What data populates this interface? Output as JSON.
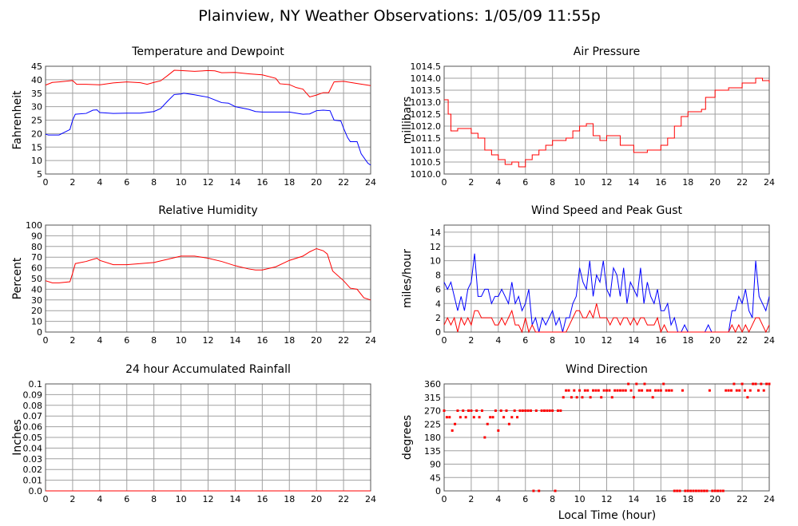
{
  "title": "Plainview, NY Weather Observations: 1/05/09 11:55p",
  "xlabel": "Local Time (hour)",
  "chart_data": [
    {
      "id": "temperature",
      "type": "line",
      "title": "Temperature and Dewpoint",
      "ylabel": "Fahrenheit",
      "xlim": [
        0,
        24
      ],
      "xticks": [
        0,
        2,
        4,
        6,
        8,
        10,
        12,
        14,
        16,
        18,
        20,
        22,
        24
      ],
      "ylim": [
        5,
        45
      ],
      "yticks": [
        5,
        10,
        15,
        20,
        25,
        30,
        35,
        40,
        45
      ],
      "decimals": 0,
      "grid": true,
      "series": [
        {
          "name": "Temperature",
          "color": "#ff0000",
          "x": [
            0,
            0.5,
            1,
            2,
            2.3,
            3,
            4,
            5,
            6,
            7,
            7.5,
            8,
            8.5,
            9,
            9.5,
            10,
            11,
            12,
            12.5,
            13,
            14,
            15,
            16,
            17,
            17.3,
            18,
            18.5,
            19,
            19.5,
            20,
            20.5,
            20.9,
            21.3,
            22,
            23,
            24
          ],
          "y": [
            38,
            39,
            39.2,
            39.7,
            38.3,
            38.3,
            38.1,
            38.8,
            39.2,
            38.9,
            38.3,
            39,
            39.6,
            41.5,
            43.5,
            43.4,
            43.1,
            43.4,
            43.3,
            42.6,
            42.7,
            42.2,
            41.8,
            40.5,
            38.5,
            38.2,
            37.1,
            36.5,
            33.6,
            34.3,
            35.2,
            35.2,
            39.2,
            39.4,
            38.6,
            37.8
          ]
        },
        {
          "name": "Dewpoint",
          "color": "#0000ff",
          "x": [
            0,
            0.2,
            1,
            1.8,
            2,
            2.2,
            3,
            3.5,
            3.8,
            4,
            5,
            6,
            7,
            8,
            8.5,
            9,
            9.5,
            10,
            10.2,
            11,
            12,
            12.5,
            13,
            13.5,
            14,
            15,
            15.5,
            16,
            17,
            18,
            19,
            19.5,
            20,
            20.5,
            21,
            21.3,
            21.8,
            22,
            22.3,
            22.5,
            23,
            23.3,
            23.8,
            24
          ],
          "y": [
            19.8,
            19.5,
            19.5,
            21.5,
            25,
            27.2,
            27.5,
            28.7,
            28.8,
            27.8,
            27.5,
            27.6,
            27.6,
            28.2,
            29.3,
            32,
            34.5,
            34.7,
            35,
            34.4,
            33.5,
            32.5,
            31.5,
            31.3,
            30,
            29,
            28.2,
            28,
            28,
            28,
            27.2,
            27.3,
            28.5,
            28.7,
            28.5,
            25,
            24.7,
            22,
            18.5,
            17,
            17,
            12.5,
            9,
            8.3
          ]
        }
      ]
    },
    {
      "id": "pressure",
      "type": "line",
      "title": "Air Pressure",
      "ylabel": "millibars",
      "xlim": [
        0,
        24
      ],
      "xticks": [
        0,
        2,
        4,
        6,
        8,
        10,
        12,
        14,
        16,
        18,
        20,
        22,
        24
      ],
      "ylim": [
        1010.0,
        1014.5
      ],
      "yticks": [
        1010.0,
        1010.5,
        1011.0,
        1011.5,
        1012.0,
        1012.5,
        1013.0,
        1013.5,
        1014.0,
        1014.5
      ],
      "decimals": 1,
      "grid": true,
      "step": true,
      "series": [
        {
          "name": "Pressure",
          "color": "#ff0000",
          "x": [
            0,
            0.3,
            0.5,
            1,
            2,
            2.5,
            3,
            3.5,
            4,
            4.5,
            5,
            5.5,
            6,
            6.5,
            7,
            7.5,
            8,
            9,
            9.5,
            10,
            10.5,
            11,
            11.5,
            12,
            13,
            14,
            15,
            16,
            16.5,
            17,
            17.5,
            18,
            19,
            19.3,
            20,
            21,
            22,
            22.5,
            23,
            23.5,
            24
          ],
          "y": [
            1013.1,
            1012.5,
            1011.8,
            1011.9,
            1011.7,
            1011.5,
            1011.0,
            1010.8,
            1010.6,
            1010.4,
            1010.5,
            1010.3,
            1010.6,
            1010.8,
            1011.0,
            1011.2,
            1011.4,
            1011.5,
            1011.8,
            1012.0,
            1012.1,
            1011.6,
            1011.4,
            1011.6,
            1011.2,
            1010.9,
            1011.0,
            1011.2,
            1011.5,
            1012.0,
            1012.4,
            1012.6,
            1012.7,
            1013.2,
            1013.5,
            1013.6,
            1013.8,
            1013.8,
            1014.0,
            1013.9,
            1013.8
          ]
        }
      ]
    },
    {
      "id": "humidity",
      "type": "line",
      "title": "Relative Humidity",
      "ylabel": "Percent",
      "xlim": [
        0,
        24
      ],
      "xticks": [
        0,
        2,
        4,
        6,
        8,
        10,
        12,
        14,
        16,
        18,
        20,
        22,
        24
      ],
      "ylim": [
        0,
        100
      ],
      "yticks": [
        0,
        10,
        20,
        30,
        40,
        50,
        60,
        70,
        80,
        90,
        100
      ],
      "decimals": 0,
      "grid": true,
      "series": [
        {
          "name": "Relative Humidity",
          "color": "#ff0000",
          "x": [
            0,
            0.5,
            1,
            1.8,
            2,
            2.2,
            3,
            3.5,
            3.8,
            4,
            5,
            6,
            7,
            8,
            9,
            10,
            11,
            12,
            13,
            14,
            15,
            15.5,
            16,
            17,
            18,
            19,
            19.5,
            20,
            20.5,
            20.8,
            21.2,
            22,
            22.5,
            23,
            23.5,
            24
          ],
          "y": [
            48,
            46,
            46,
            47,
            55,
            64,
            66,
            68,
            69,
            67,
            63,
            63,
            64,
            65,
            68,
            71,
            71,
            69,
            66,
            62,
            59,
            58,
            58,
            61,
            67,
            71,
            75,
            78,
            76,
            73,
            57,
            48,
            41,
            40,
            32,
            30
          ]
        }
      ]
    },
    {
      "id": "wind",
      "type": "line",
      "title": "Wind Speed and Peak Gust",
      "ylabel": "miles/hour",
      "xlim": [
        0,
        24
      ],
      "xticks": [
        0,
        2,
        4,
        6,
        8,
        10,
        12,
        14,
        16,
        18,
        20,
        22,
        24
      ],
      "ylim": [
        0,
        15
      ],
      "yticks": [
        0,
        2,
        4,
        6,
        8,
        10,
        12,
        14
      ],
      "decimals": 0,
      "grid": true,
      "x_step_hours": 0.25,
      "series": [
        {
          "name": "Peak Gust",
          "color": "#0000ff",
          "y": [
            7,
            6,
            7,
            5,
            3,
            5,
            3,
            6,
            7,
            11,
            5,
            5,
            6,
            6,
            4,
            5,
            5,
            6,
            5,
            4,
            7,
            4,
            5,
            3,
            4,
            6,
            1,
            2,
            0,
            2,
            1,
            2,
            3,
            1,
            2,
            0,
            2,
            2,
            4,
            5,
            9,
            7,
            6,
            10,
            5,
            8,
            7,
            10,
            6,
            5,
            9,
            8,
            5,
            9,
            4,
            7,
            6,
            5,
            9,
            4,
            7,
            5,
            4,
            6,
            3,
            3,
            4,
            1,
            2,
            0,
            0,
            1,
            0,
            0,
            0,
            0,
            0,
            0,
            1,
            0,
            0,
            0,
            0,
            0,
            0,
            3,
            3,
            5,
            4,
            6,
            3,
            2,
            10,
            5,
            4,
            3,
            5
          ]
        },
        {
          "name": "Wind Speed",
          "color": "#ff0000",
          "y": [
            1,
            2,
            1,
            2,
            0,
            2,
            1,
            2,
            1,
            3,
            3,
            2,
            2,
            2,
            2,
            1,
            1,
            2,
            1,
            2,
            3,
            1,
            1,
            0,
            2,
            0,
            1,
            0,
            0,
            0,
            0,
            0,
            0,
            0,
            0,
            0,
            0,
            1,
            2,
            3,
            3,
            2,
            2,
            3,
            2,
            4,
            2,
            2,
            2,
            1,
            2,
            2,
            1,
            2,
            2,
            1,
            2,
            1,
            2,
            2,
            1,
            1,
            1,
            2,
            0,
            1,
            0,
            0,
            0,
            0,
            0,
            0,
            0,
            0,
            0,
            0,
            0,
            0,
            0,
            0,
            0,
            0,
            0,
            0,
            0,
            1,
            0,
            1,
            0,
            1,
            0,
            1,
            2,
            2,
            1,
            0,
            1
          ]
        }
      ]
    },
    {
      "id": "rainfall",
      "type": "line",
      "title": "24 hour Accumulated Rainfall",
      "ylabel": "Inches",
      "xlim": [
        0,
        24
      ],
      "xticks": [
        0,
        2,
        4,
        6,
        8,
        10,
        12,
        14,
        16,
        18,
        20,
        22,
        24
      ],
      "ylim": [
        0,
        0.1
      ],
      "yticks": [
        0,
        0.01,
        0.02,
        0.03,
        0.04,
        0.05,
        0.06,
        0.07,
        0.08,
        0.09,
        0.1
      ],
      "tick_labels": [
        "0.0",
        "0.01",
        "0.02",
        "0.03",
        "0.04",
        "0.05",
        "0.06",
        "0.07",
        "0.08",
        "0.09",
        "0.1"
      ],
      "grid": true,
      "series": [
        {
          "name": "Rainfall",
          "color": "#ff0000",
          "x": [
            0,
            24
          ],
          "y": [
            0,
            0
          ]
        }
      ]
    },
    {
      "id": "direction",
      "type": "scatter",
      "title": "Wind Direction",
      "ylabel": "degrees",
      "xlim": [
        0,
        24
      ],
      "xticks": [
        0,
        2,
        4,
        6,
        8,
        10,
        12,
        14,
        16,
        18,
        20,
        22,
        24
      ],
      "ylim": [
        0,
        360
      ],
      "yticks": [
        0,
        45,
        90,
        135,
        180,
        225,
        270,
        315,
        360
      ],
      "decimals": 0,
      "grid": true,
      "x_step_hours": 0.2,
      "series": [
        {
          "name": "Direction",
          "color": "#ff0000",
          "y": [
            270,
            248,
            248,
            203,
            225,
            270,
            248,
            270,
            248,
            270,
            270,
            248,
            270,
            248,
            270,
            180,
            225,
            248,
            248,
            270,
            203,
            270,
            248,
            270,
            225,
            248,
            270,
            248,
            270,
            270,
            270,
            270,
            270,
            0,
            270,
            0,
            270,
            270,
            270,
            270,
            270,
            0,
            270,
            270,
            315,
            338,
            338,
            315,
            338,
            315,
            338,
            315,
            338,
            338,
            315,
            338,
            338,
            338,
            315,
            338,
            338,
            338,
            315,
            338,
            338,
            338,
            338,
            338,
            360,
            338,
            315,
            360,
            338,
            338,
            360,
            338,
            338,
            315,
            338,
            338,
            338,
            360,
            338,
            338,
            338,
            0,
            0,
            0,
            338,
            0,
            0,
            0,
            0,
            0,
            0,
            0,
            0,
            0,
            338,
            0,
            0,
            0,
            0,
            0,
            338,
            338,
            338,
            360,
            338,
            338,
            360,
            338,
            315,
            338,
            360,
            360,
            338,
            360,
            338,
            360,
            360
          ]
        }
      ]
    }
  ]
}
